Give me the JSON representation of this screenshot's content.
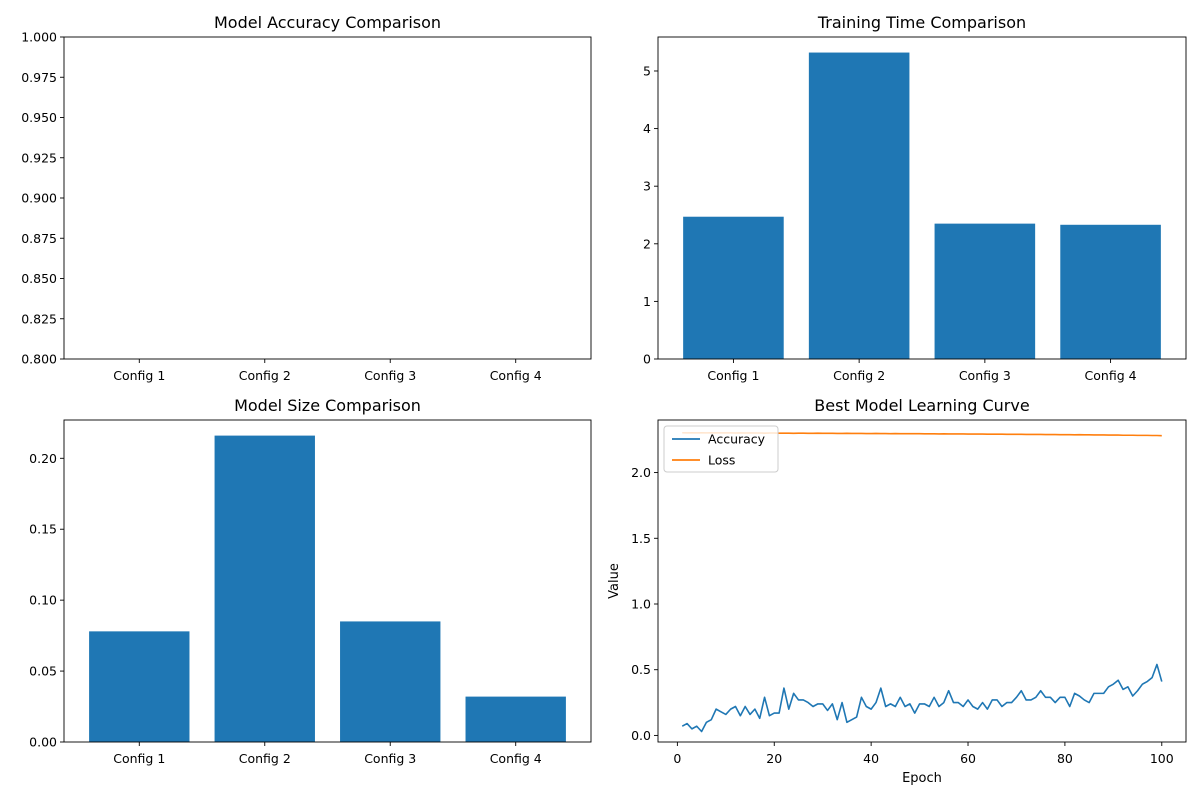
{
  "colors": {
    "bar": "#1f77b4",
    "accuracy": "#1f77b4",
    "loss": "#ff7f0e"
  },
  "chart_data": [
    {
      "type": "bar",
      "title": "Model Accuracy Comparison",
      "categories": [
        "Config 1",
        "Config 2",
        "Config 3",
        "Config 4"
      ],
      "values": [
        0.0,
        0.0,
        0.0,
        0.0
      ],
      "ylim": [
        0.8,
        1.0
      ],
      "yticks": [
        0.8,
        0.825,
        0.85,
        0.875,
        0.9,
        0.925,
        0.95,
        0.975,
        1.0
      ],
      "ytick_labels": [
        "0.800",
        "0.825",
        "0.850",
        "0.875",
        "0.900",
        "0.925",
        "0.950",
        "0.975",
        "1.000"
      ],
      "xlabel": "",
      "ylabel": ""
    },
    {
      "type": "bar",
      "title": "Training Time Comparison",
      "categories": [
        "Config 1",
        "Config 2",
        "Config 3",
        "Config 4"
      ],
      "values": [
        2.47,
        5.32,
        2.35,
        2.33
      ],
      "ylim": [
        0,
        5.59
      ],
      "yticks": [
        0,
        1,
        2,
        3,
        4,
        5
      ],
      "ytick_labels": [
        "0",
        "1",
        "2",
        "3",
        "4",
        "5"
      ],
      "xlabel": "",
      "ylabel": ""
    },
    {
      "type": "bar",
      "title": "Model Size Comparison",
      "categories": [
        "Config 1",
        "Config 2",
        "Config 3",
        "Config 4"
      ],
      "values": [
        0.078,
        0.216,
        0.085,
        0.032
      ],
      "ylim": [
        0,
        0.227
      ],
      "yticks": [
        0,
        0.05,
        0.1,
        0.15,
        0.2
      ],
      "ytick_labels": [
        "0.00",
        "0.05",
        "0.10",
        "0.15",
        "0.20"
      ],
      "xlabel": "",
      "ylabel": ""
    },
    {
      "type": "line",
      "title": "Best Model Learning Curve",
      "xlabel": "Epoch",
      "ylabel": "Value",
      "xlim": [
        -4,
        105
      ],
      "ylim": [
        -0.05,
        2.4
      ],
      "xticks": [
        0,
        20,
        40,
        60,
        80,
        100
      ],
      "xtick_labels": [
        "0",
        "20",
        "40",
        "60",
        "80",
        "100"
      ],
      "yticks": [
        0,
        0.5,
        1.0,
        1.5,
        2.0
      ],
      "ytick_labels": [
        "0.0",
        "0.5",
        "1.0",
        "1.5",
        "2.0"
      ],
      "legend": {
        "placement": "upper-left",
        "entries": [
          "Accuracy",
          "Loss"
        ]
      },
      "x": [
        1,
        2,
        3,
        4,
        5,
        6,
        7,
        8,
        9,
        10,
        11,
        12,
        13,
        14,
        15,
        16,
        17,
        18,
        19,
        20,
        21,
        22,
        23,
        24,
        25,
        26,
        27,
        28,
        29,
        30,
        31,
        32,
        33,
        34,
        35,
        36,
        37,
        38,
        39,
        40,
        41,
        42,
        43,
        44,
        45,
        46,
        47,
        48,
        49,
        50,
        51,
        52,
        53,
        54,
        55,
        56,
        57,
        58,
        59,
        60,
        61,
        62,
        63,
        64,
        65,
        66,
        67,
        68,
        69,
        70,
        71,
        72,
        73,
        74,
        75,
        76,
        77,
        78,
        79,
        80,
        81,
        82,
        83,
        84,
        85,
        86,
        87,
        88,
        89,
        90,
        91,
        92,
        93,
        94,
        95,
        96,
        97,
        98,
        99,
        100
      ],
      "series": [
        {
          "name": "Accuracy",
          "values": [
            0.07,
            0.09,
            0.05,
            0.07,
            0.03,
            0.1,
            0.12,
            0.2,
            0.18,
            0.16,
            0.2,
            0.22,
            0.15,
            0.22,
            0.16,
            0.2,
            0.13,
            0.29,
            0.15,
            0.17,
            0.17,
            0.36,
            0.2,
            0.32,
            0.27,
            0.27,
            0.25,
            0.22,
            0.24,
            0.24,
            0.19,
            0.24,
            0.12,
            0.25,
            0.1,
            0.12,
            0.14,
            0.29,
            0.22,
            0.2,
            0.25,
            0.36,
            0.22,
            0.24,
            0.22,
            0.29,
            0.22,
            0.24,
            0.17,
            0.24,
            0.24,
            0.22,
            0.29,
            0.22,
            0.25,
            0.34,
            0.25,
            0.25,
            0.22,
            0.27,
            0.22,
            0.2,
            0.25,
            0.2,
            0.27,
            0.27,
            0.22,
            0.25,
            0.25,
            0.29,
            0.34,
            0.27,
            0.27,
            0.29,
            0.34,
            0.29,
            0.29,
            0.25,
            0.29,
            0.29,
            0.22,
            0.32,
            0.3,
            0.27,
            0.25,
            0.32,
            0.32,
            0.32,
            0.37,
            0.39,
            0.42,
            0.35,
            0.37,
            0.3,
            0.34,
            0.39,
            0.41,
            0.44,
            0.54,
            0.41
          ]
        },
        {
          "name": "Loss",
          "values": [
            2.303,
            2.302,
            2.303,
            2.302,
            2.303,
            2.302,
            2.303,
            2.302,
            2.302,
            2.302,
            2.302,
            2.301,
            2.302,
            2.301,
            2.302,
            2.301,
            2.301,
            2.3,
            2.301,
            2.301,
            2.3,
            2.3,
            2.3,
            2.299,
            2.3,
            2.3,
            2.299,
            2.299,
            2.3,
            2.299,
            2.299,
            2.299,
            2.298,
            2.298,
            2.299,
            2.298,
            2.298,
            2.298,
            2.297,
            2.297,
            2.298,
            2.297,
            2.297,
            2.296,
            2.297,
            2.296,
            2.296,
            2.296,
            2.296,
            2.296,
            2.295,
            2.295,
            2.295,
            2.294,
            2.295,
            2.294,
            2.294,
            2.294,
            2.294,
            2.293,
            2.293,
            2.293,
            2.293,
            2.292,
            2.292,
            2.292,
            2.292,
            2.291,
            2.291,
            2.291,
            2.291,
            2.29,
            2.29,
            2.29,
            2.29,
            2.289,
            2.289,
            2.289,
            2.288,
            2.288,
            2.288,
            2.287,
            2.288,
            2.287,
            2.287,
            2.286,
            2.286,
            2.286,
            2.285,
            2.285,
            2.285,
            2.284,
            2.284,
            2.284,
            2.283,
            2.283,
            2.283,
            2.282,
            2.282,
            2.281
          ]
        }
      ]
    }
  ]
}
